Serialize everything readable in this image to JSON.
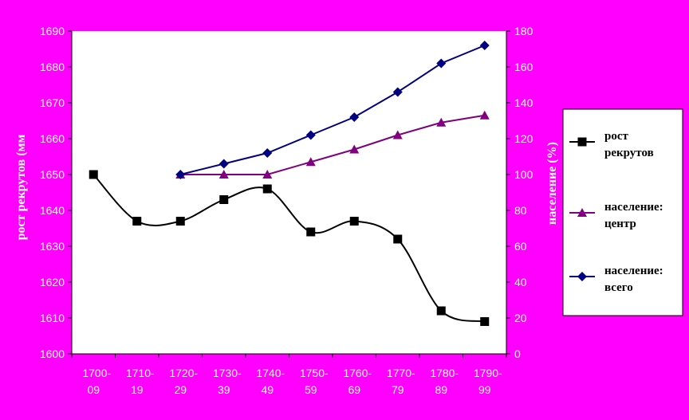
{
  "chart_data": {
    "type": "line",
    "categories": [
      [
        "1700-",
        "09"
      ],
      [
        "1710-",
        "19"
      ],
      [
        "1720-",
        "29"
      ],
      [
        "1730-",
        "39"
      ],
      [
        "1740-",
        "49"
      ],
      [
        "1750-",
        "59"
      ],
      [
        "1760-",
        "69"
      ],
      [
        "1770-",
        "79"
      ],
      [
        "1780-",
        "89"
      ],
      [
        "1790-",
        "99"
      ]
    ],
    "y_left": {
      "label": "рост рекрутов (мм",
      "min": 1600,
      "max": 1690,
      "step": 10,
      "ticks": [
        "1600",
        "1610",
        "1620",
        "1630",
        "1640",
        "1650",
        "1660",
        "1670",
        "1680",
        "1690"
      ]
    },
    "y_right": {
      "label": "население (%)",
      "min": 0,
      "max": 180,
      "step": 20,
      "ticks": [
        "0",
        "20",
        "40",
        "60",
        "80",
        "100",
        "120",
        "140",
        "160",
        "180"
      ]
    },
    "series": [
      {
        "name_lines": [
          "рост",
          "рекрутов"
        ],
        "axis": "left",
        "color": "#000000",
        "marker": "square",
        "values": [
          1650,
          1637,
          1637,
          1643,
          1646,
          1634,
          1637,
          1632,
          1612,
          1609
        ]
      },
      {
        "name_lines": [
          "население:",
          "центр"
        ],
        "axis": "right",
        "color": "#800080",
        "marker": "triangle",
        "values": [
          null,
          null,
          100,
          100,
          100,
          107,
          114,
          122,
          129,
          133
        ]
      },
      {
        "name_lines": [
          "население:",
          "всего"
        ],
        "axis": "right",
        "color": "#000080",
        "marker": "diamond",
        "values": [
          null,
          null,
          100,
          106,
          112,
          122,
          132,
          146,
          162,
          172
        ]
      }
    ],
    "legend_position": "right",
    "grid": false,
    "colors": {
      "background": "#ff00ff",
      "plot_area": "#ffffff",
      "text": "#ffffff"
    }
  }
}
